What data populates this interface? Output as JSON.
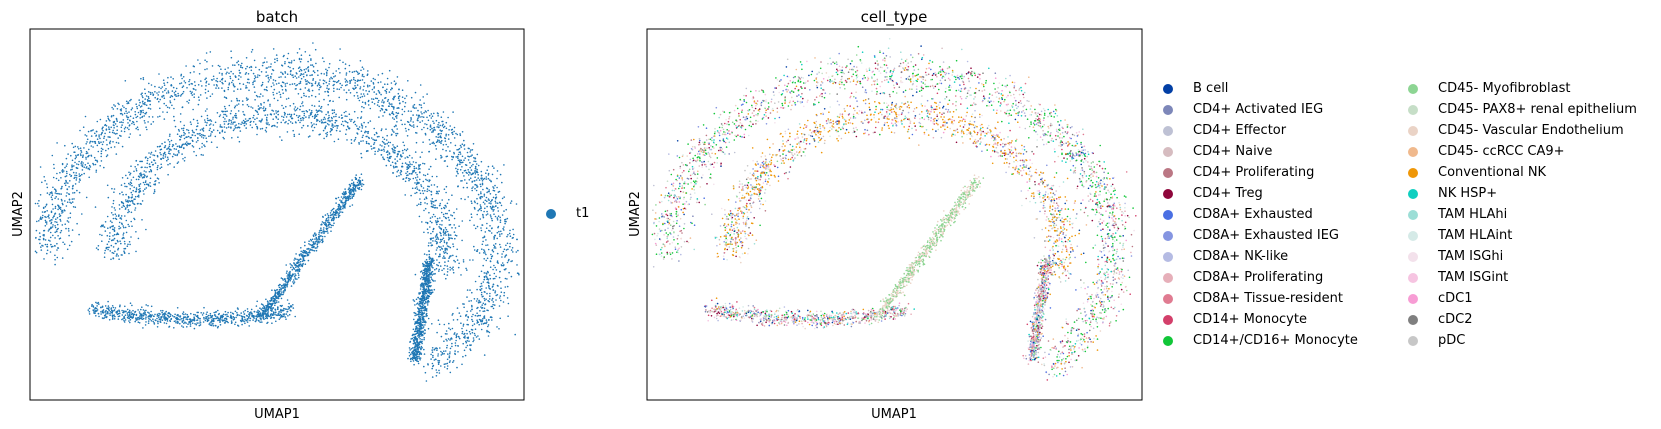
{
  "chart_data": [
    {
      "type": "scatter",
      "title": "batch",
      "xlabel": "UMAP1",
      "ylabel": "UMAP2",
      "grid": false,
      "ticks": false,
      "legend_position": "right",
      "series": [
        {
          "name": "t1",
          "color": "#1f77b4"
        }
      ]
    },
    {
      "type": "scatter",
      "title": "cell_type",
      "xlabel": "UMAP1",
      "ylabel": "UMAP2",
      "grid": false,
      "ticks": false,
      "legend_position": "right",
      "series": [
        {
          "name": "B cell",
          "color": "#023fa5"
        },
        {
          "name": "CD4+ Activated IEG",
          "color": "#7d87b9"
        },
        {
          "name": "CD4+ Effector",
          "color": "#bec1d4"
        },
        {
          "name": "CD4+ Naive",
          "color": "#d6bcc0"
        },
        {
          "name": "CD4+ Proliferating",
          "color": "#bb7784"
        },
        {
          "name": "CD4+ Treg",
          "color": "#8e063b"
        },
        {
          "name": "CD8A+ Exhausted",
          "color": "#4a6fe3"
        },
        {
          "name": "CD8A+ Exhausted IEG",
          "color": "#8595e1"
        },
        {
          "name": "CD8A+ NK-like",
          "color": "#b5bbe3"
        },
        {
          "name": "CD8A+ Proliferating",
          "color": "#e6afb9"
        },
        {
          "name": "CD8A+ Tissue-resident",
          "color": "#e07b91"
        },
        {
          "name": "CD14+ Monocyte",
          "color": "#d33f6a"
        },
        {
          "name": "CD14+/CD16+ Monocyte",
          "color": "#11c638"
        },
        {
          "name": "CD45- Myofibroblast",
          "color": "#8dd593"
        },
        {
          "name": "CD45- PAX8+ renal epithelium",
          "color": "#c6dec7"
        },
        {
          "name": "CD45- Vascular Endothelium",
          "color": "#ead3c6"
        },
        {
          "name": "CD45- ccRCC CA9+",
          "color": "#f0b98d"
        },
        {
          "name": "Conventional NK",
          "color": "#ef9708"
        },
        {
          "name": "NK HSP+",
          "color": "#0fcfc0"
        },
        {
          "name": "TAM HLAhi",
          "color": "#9cded6"
        },
        {
          "name": "TAM HLAint",
          "color": "#d5eae7"
        },
        {
          "name": "TAM ISGhi",
          "color": "#f3e1eb"
        },
        {
          "name": "TAM ISGint",
          "color": "#f6c4e1"
        },
        {
          "name": "cDC1",
          "color": "#f79cd4"
        },
        {
          "name": "cDC2",
          "color": "#7f7f7f"
        },
        {
          "name": "pDC",
          "color": "#c7c7c7"
        }
      ]
    }
  ]
}
